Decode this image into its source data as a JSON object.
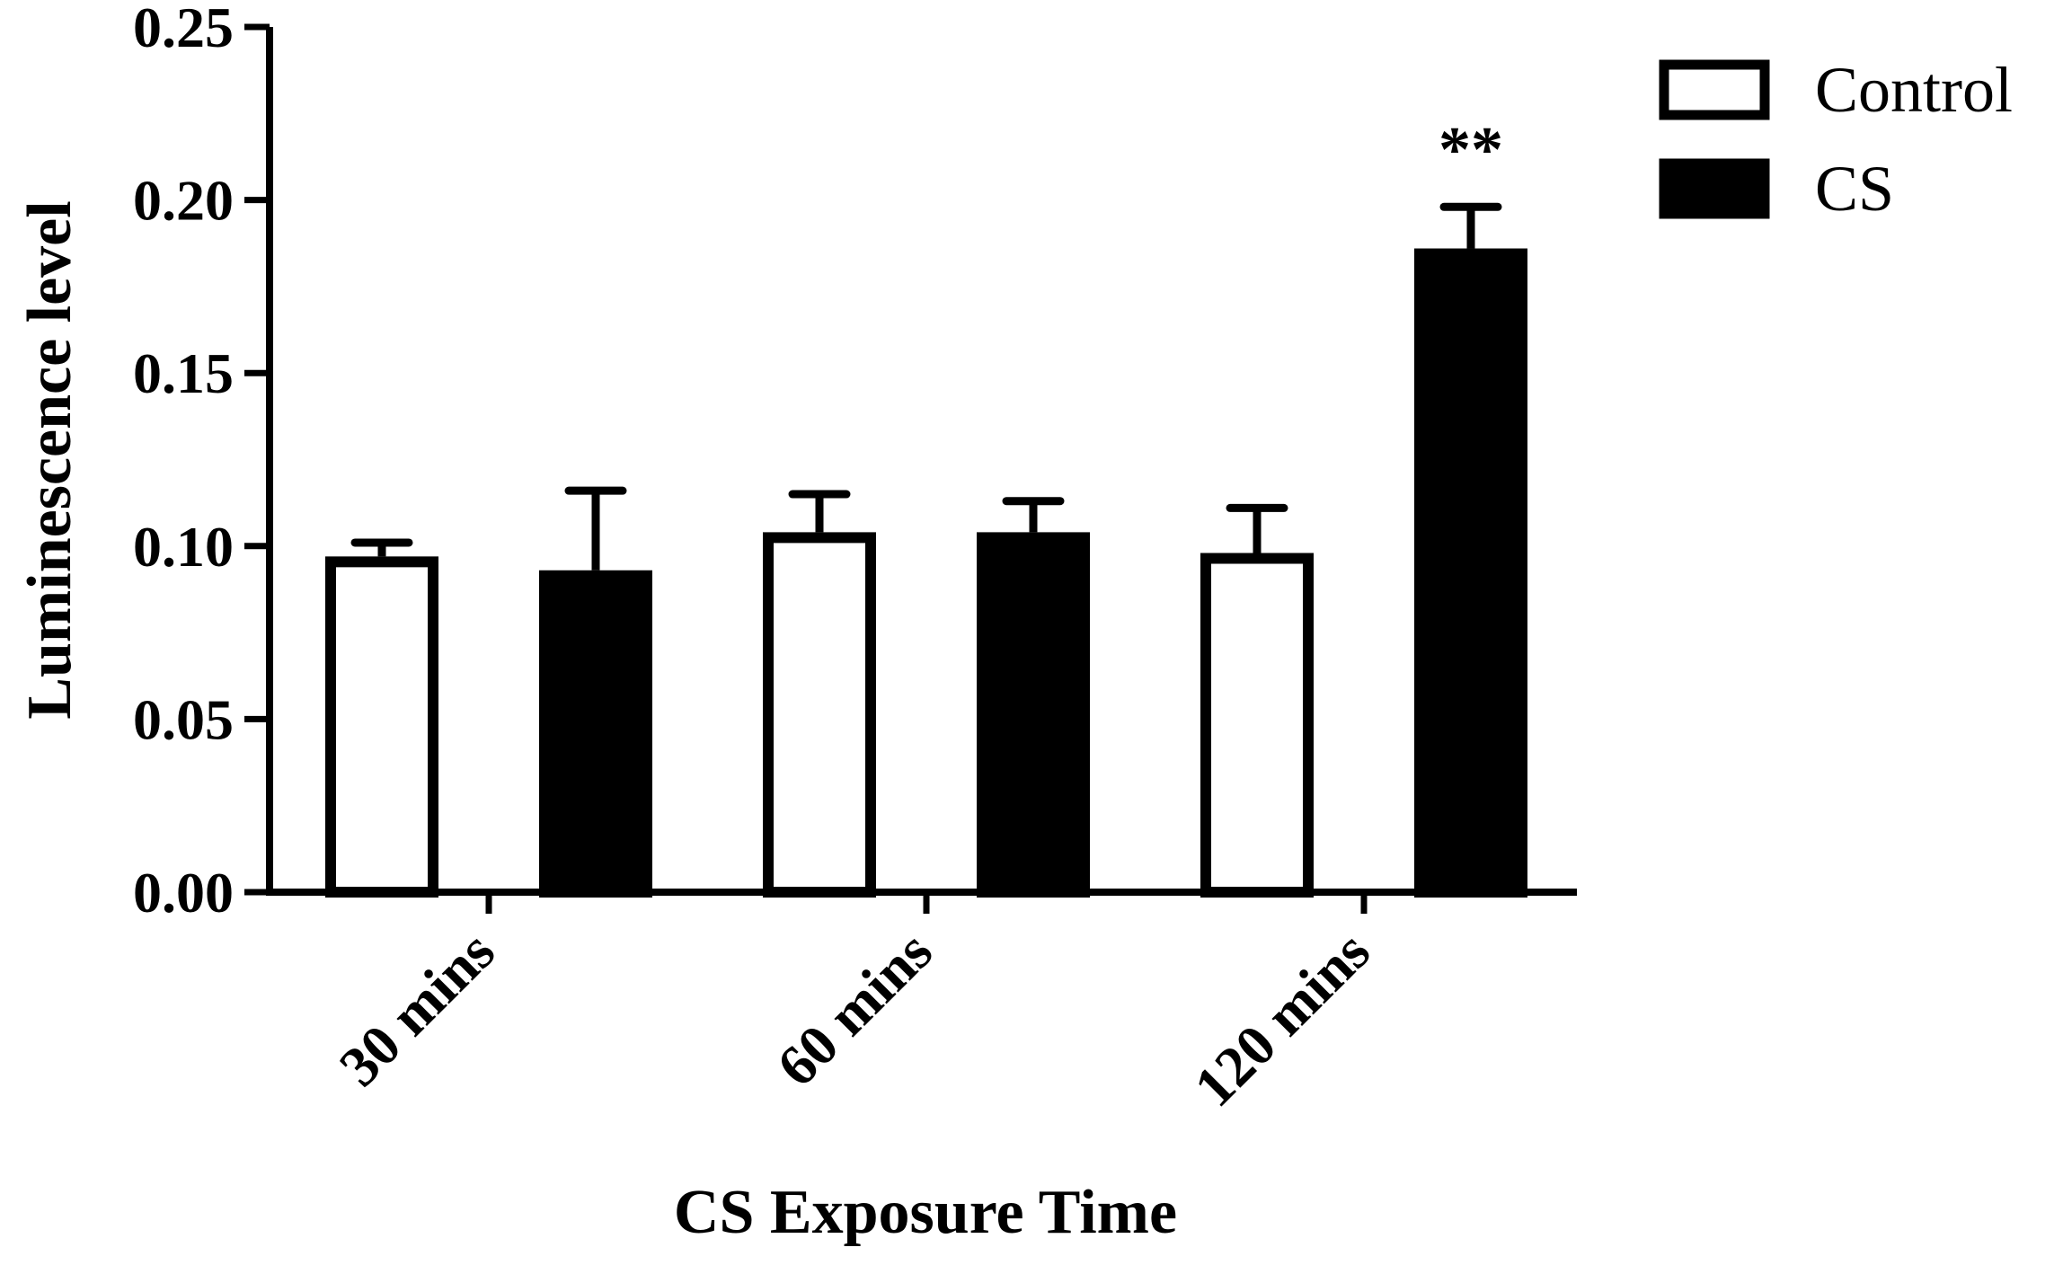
{
  "chart_data": {
    "type": "bar",
    "title": "",
    "xlabel": "CS Exposure Time",
    "ylabel": "Luminescence level",
    "categories": [
      "30 mins",
      "60 mins",
      "120 mins"
    ],
    "series": [
      {
        "name": "Control",
        "values": [
          0.097,
          0.104,
          0.098
        ],
        "errors": [
          0.004,
          0.011,
          0.013
        ],
        "fill": "#ffffff",
        "stroke": "#000000"
      },
      {
        "name": "CS",
        "values": [
          0.093,
          0.104,
          0.186
        ],
        "errors": [
          0.023,
          0.009,
          0.012
        ],
        "fill": "#000000",
        "stroke": "#000000"
      }
    ],
    "ylim": [
      0,
      0.25
    ],
    "yticks": [
      "0.00",
      "0.05",
      "0.10",
      "0.15",
      "0.20",
      "0.25"
    ],
    "annotations": [
      {
        "category": "120 mins",
        "series": "CS",
        "text": "**"
      }
    ],
    "legend": "top-right",
    "grid": false
  }
}
